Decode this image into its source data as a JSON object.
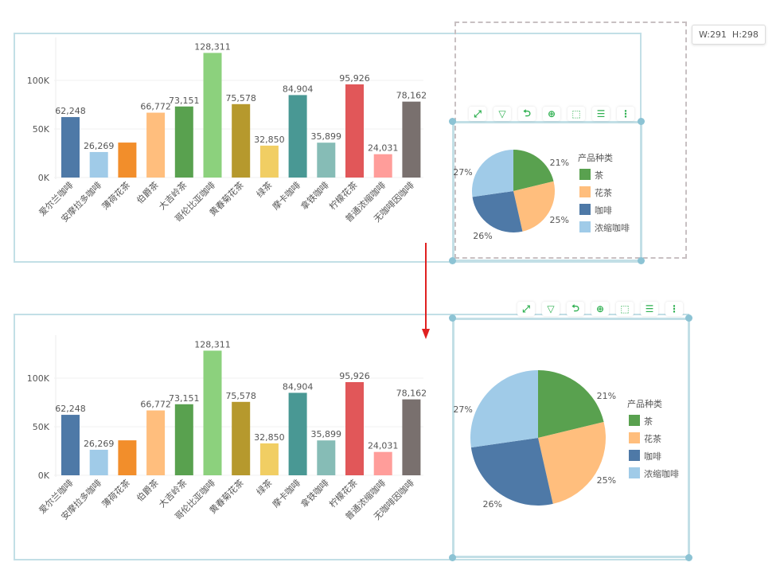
{
  "size_tooltip": "W:291  H:298",
  "toolbar": [
    {
      "icon": "fullscreen-icon",
      "glyph": "⤢"
    },
    {
      "icon": "filter-icon",
      "glyph": "▽"
    },
    {
      "icon": "drill-icon",
      "glyph": "⮌"
    },
    {
      "icon": "zoom-in-icon",
      "glyph": "⊕"
    },
    {
      "icon": "select-icon",
      "glyph": "⬚"
    },
    {
      "icon": "list-icon",
      "glyph": "☰"
    },
    {
      "icon": "more-icon",
      "glyph": "⋮"
    }
  ],
  "chart_data": [
    {
      "type": "bar",
      "categories": [
        "爱尔兰咖啡",
        "安摩拉多咖啡",
        "薄荷花茶",
        "伯爵茶",
        "大吉岭茶",
        "哥伦比亚咖啡",
        "黄春菊花茶",
        "绿茶",
        "摩卡咖啡",
        "拿铁咖啡",
        "柠檬花茶",
        "普通浓缩咖啡",
        "无咖啡因咖啡"
      ],
      "values": [
        62248,
        26269,
        36000,
        66772,
        73151,
        128311,
        75578,
        32850,
        84904,
        35899,
        95926,
        24031,
        78162
      ],
      "data_labels": [
        "62,248",
        "26,269",
        "",
        "66,772",
        "73,151",
        "128,311",
        "75,578",
        "32,850",
        "84,904",
        "35,899",
        "95,926",
        "24,031",
        "78,162"
      ],
      "colors": [
        "#4e79a7",
        "#a0cbe8",
        "#f28e2b",
        "#ffbe7d",
        "#59a14f",
        "#8cd17d",
        "#b6992d",
        "#f1ce63",
        "#499894",
        "#86bcb6",
        "#e15759",
        "#ff9d9a",
        "#79706e"
      ],
      "yticks": [
        "0K",
        "50K",
        "100K"
      ],
      "ylim": [
        0,
        140000
      ]
    },
    {
      "type": "pie",
      "legend_title": "产品种类",
      "labels": [
        "茶",
        "花茶",
        "咖啡",
        "浓缩咖啡"
      ],
      "values": [
        21,
        25,
        26,
        27
      ],
      "pct_labels": [
        "21%",
        "25%",
        "26%",
        "27%"
      ],
      "colors": [
        "#59a14f",
        "#ffbe7d",
        "#4e79a7",
        "#a0cbe8"
      ],
      "legend": "right"
    }
  ]
}
